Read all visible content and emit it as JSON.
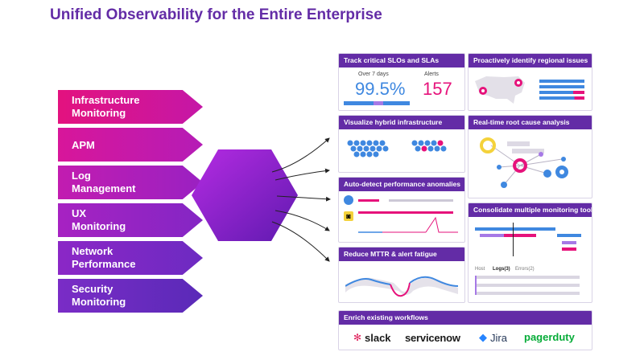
{
  "page": {
    "title": "Unified Observability for the Entire Enterprise"
  },
  "products": [
    {
      "line1": "Infrastructure",
      "line2": "Monitoring"
    },
    {
      "line1": "APM",
      "line2": ""
    },
    {
      "line1": "Log",
      "line2": "Management"
    },
    {
      "line1": "UX",
      "line2": "Monitoring"
    },
    {
      "line1": "Network",
      "line2": "Performance"
    },
    {
      "line1": "Security",
      "line2": "Monitoring"
    }
  ],
  "colors": {
    "brand": "#632ca6",
    "pink": "#e6127b",
    "blue": "#3f88e0",
    "yellow": "#f4d23b"
  },
  "cards": {
    "slo": {
      "title": "Track critical SLOs and SLAs",
      "period_label": "Over 7 days",
      "slo_value": "99.5%",
      "alerts_label": "Alerts",
      "alerts_value": "157"
    },
    "regional": {
      "title": "Proactively identify regional issues"
    },
    "hybrid": {
      "title": "Visualize hybrid infrastructure"
    },
    "root_cause": {
      "title": "Real-time root cause analysis"
    },
    "anomalies": {
      "title": "Auto-detect performance anomalies"
    },
    "consolidate": {
      "title": "Consolidate multiple monitoring tools",
      "tabs": [
        "Host",
        "Logs(3)",
        "Errors(2)"
      ]
    },
    "mttr": {
      "title": "Reduce MTTR & alert fatigue"
    },
    "workflows": {
      "title": "Enrich existing workflows",
      "integrations": [
        "slack",
        "servicenow",
        "Jira",
        "pagerduty"
      ]
    }
  }
}
